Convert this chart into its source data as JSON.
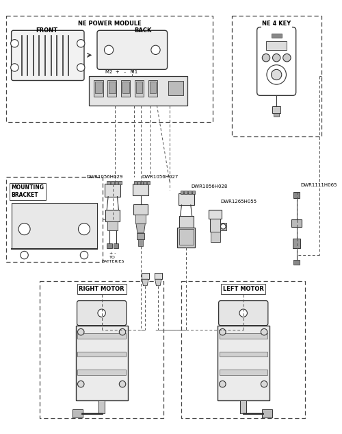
{
  "labels": {
    "ne_power_module": "NE POWER MODULE",
    "ne_4_key": "NE 4 KEY",
    "front": "FRONT",
    "back": "BACK",
    "mounting_bracket": "MOUNTING\nBRACKET",
    "right_motor": "RIGHT MOTOR",
    "left_motor": "LEFT MOTOR",
    "m2": "M2  +   -   M1",
    "to_batteries": "+ -\nTO\nBATTERIES",
    "dwr029": "DWR1056H029",
    "dwr027": "DWR1056H027",
    "dwr028": "DWR1056H028",
    "dwr055": "DWR1265H055",
    "dwr065": "DWR1111H065"
  },
  "font_size": 6.0,
  "small_font": 5.0
}
